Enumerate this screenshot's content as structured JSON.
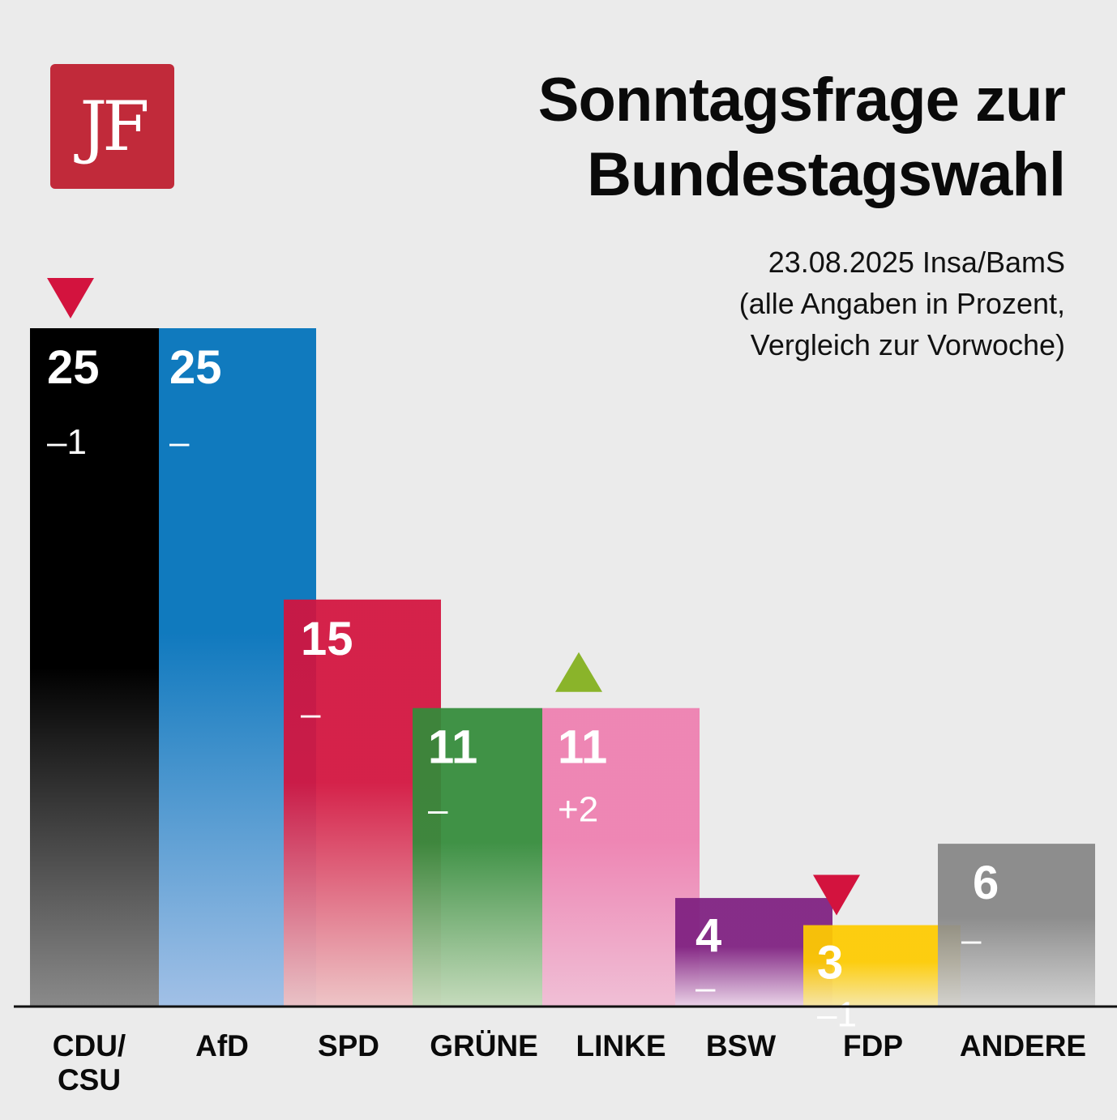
{
  "header": {
    "logo_text": "JF",
    "title_line1": "Sonntagsfrage zur",
    "title_line2": "Bundestagswahl",
    "subtitle_line1": "23.08.2025 Insa/BamS",
    "subtitle_line2": "(alle Angaben in Prozent,",
    "subtitle_line3": "Vergleich zur Vorwoche)"
  },
  "chart_data": {
    "type": "bar",
    "title": "Sonntagsfrage zur Bundestagswahl",
    "xlabel": "",
    "ylabel": "",
    "ylim": [
      0,
      25
    ],
    "grid": false,
    "categories": [
      "CDU/ CSU",
      "AfD",
      "SPD",
      "GRÜNE",
      "LINKE",
      "BSW",
      "FDP",
      "ANDERE"
    ],
    "values": [
      25,
      25,
      15,
      11,
      11,
      4,
      3,
      6
    ],
    "value_labels": [
      "25",
      "25",
      "15",
      "11",
      "11",
      "4",
      "3",
      "6"
    ],
    "changes": [
      "–1",
      "–",
      "–",
      "–",
      "+2",
      "–",
      "–1",
      "–"
    ],
    "trend": [
      "down",
      "none",
      "none",
      "none",
      "up",
      "none",
      "down",
      "none"
    ],
    "colors": [
      "#000000",
      "#0071bb",
      "#d3133e",
      "#338b3a",
      "#ee7fb0",
      "#7e1f80",
      "#fecb00",
      "#868686"
    ],
    "fade_colors": [
      "#8a8a8a",
      "#9cbde6",
      "#eec2c4",
      "#c3dab9",
      "#f0bcd4",
      "#ead3e8",
      "#f7e7a4",
      "#d0d0d0"
    ]
  }
}
